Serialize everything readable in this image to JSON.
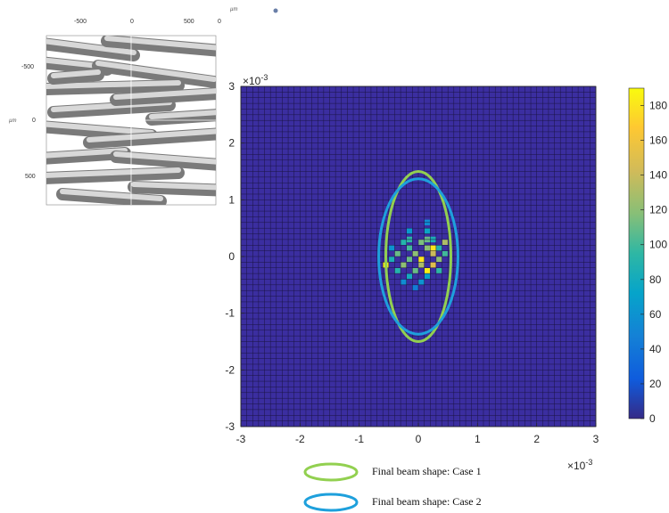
{
  "chart_data": {
    "type": "heatmap",
    "title": "",
    "x": {
      "min": -0.003,
      "max": 0.003,
      "ticks": [
        -3,
        -2,
        -1,
        0,
        1,
        2,
        3
      ],
      "multiplier": "×10",
      "exponent": "-3"
    },
    "y": {
      "min": -0.003,
      "max": 0.003,
      "ticks": [
        3,
        2,
        1,
        0,
        -1,
        -2,
        -3
      ],
      "multiplier": "×10",
      "exponent": "-3"
    },
    "grid_bins": 60,
    "colorbar": {
      "min": 0,
      "max": 190,
      "ticks": [
        180,
        160,
        140,
        120,
        100,
        80,
        60,
        40,
        20,
        0
      ]
    },
    "hot_cells": [
      [
        0.00015,
        0.0006,
        55
      ],
      [
        -0.00015,
        0.00045,
        65
      ],
      [
        0.00015,
        0.00045,
        75
      ],
      [
        0.00025,
        0.0003,
        85
      ],
      [
        -0.00015,
        0.0003,
        95
      ],
      [
        0.00015,
        0.0003,
        110
      ],
      [
        -0.00045,
        0.00015,
        60
      ],
      [
        -0.00015,
        0.00015,
        100
      ],
      [
        0.00015,
        0.00015,
        120
      ],
      [
        0.00035,
        0.00015,
        90
      ],
      [
        -0.00025,
        0.00025,
        90
      ],
      [
        5e-05,
        0.00025,
        115
      ],
      [
        0.00025,
        0.00015,
        180
      ],
      [
        0.00045,
        0.00025,
        130
      ],
      [
        -0.00035,
        5e-05,
        110
      ],
      [
        -5e-05,
        5e-05,
        120
      ],
      [
        0.00025,
        5e-05,
        140
      ],
      [
        0.00045,
        5e-05,
        100
      ],
      [
        -0.00045,
        -5e-05,
        85
      ],
      [
        -0.00015,
        -5e-05,
        110
      ],
      [
        5e-05,
        -5e-05,
        180
      ],
      [
        0.00035,
        -5e-05,
        120
      ],
      [
        -0.00055,
        -0.00015,
        185
      ],
      [
        -0.00025,
        -0.00015,
        120
      ],
      [
        5e-05,
        -0.00015,
        130
      ],
      [
        0.00025,
        -0.00015,
        150
      ],
      [
        0.00015,
        -0.00025,
        185
      ],
      [
        -0.00035,
        -0.00025,
        90
      ],
      [
        -5e-05,
        -0.00025,
        110
      ],
      [
        0.00035,
        -0.00025,
        95
      ],
      [
        -0.00015,
        -0.00035,
        80
      ],
      [
        0.00015,
        -0.00035,
        70
      ],
      [
        -0.00025,
        -0.00045,
        55
      ],
      [
        5e-05,
        -0.00045,
        60
      ],
      [
        -5e-05,
        -0.00055,
        45
      ]
    ],
    "ellipses": [
      {
        "name": "Final beam shape: Case 1",
        "cx": 0,
        "cy": 0,
        "rx": 0.00055,
        "ry": 0.0015,
        "color": "#92d050"
      },
      {
        "name": "Final beam shape: Case 2",
        "cx": 0,
        "cy": 0,
        "rx": 0.00067,
        "ry": 0.00137,
        "color": "#1ea0dc"
      }
    ],
    "background_color": "#3b2ea0"
  },
  "inset": {
    "x_ticks": [
      "-500",
      "0",
      "500",
      "0"
    ],
    "y_ticks": [
      "-500",
      "0",
      "500"
    ],
    "unit_y": "µm",
    "unit_x": "µm"
  },
  "legend": {
    "case1": "Final beam shape: Case 1",
    "case2": "Final beam shape: Case 2"
  }
}
